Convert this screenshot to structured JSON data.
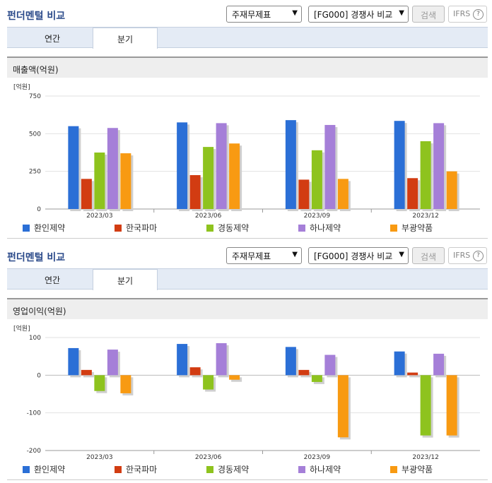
{
  "panels": [
    {
      "title": "펀더멘털 비교",
      "select1": "주재무제표",
      "select2": "[FG000] 경쟁사 비교",
      "search_label": "검색",
      "ifrs_label": "IFRS",
      "help_symbol": "?",
      "tab_annual": "연간",
      "tab_quarter": "분기",
      "section_title": "매출액(억원)"
    },
    {
      "title": "펀더멘털 비교",
      "select1": "주재무제표",
      "select2": "[FG000] 경쟁사 비교",
      "search_label": "검색",
      "ifrs_label": "IFRS",
      "help_symbol": "?",
      "tab_annual": "연간",
      "tab_quarter": "분기",
      "section_title": "영업이익(억원)"
    }
  ],
  "chart_data": [
    {
      "type": "bar",
      "unit_label": "[억원]",
      "categories": [
        "2023/03",
        "2023/06",
        "2023/09",
        "2023/12"
      ],
      "ylim": [
        0,
        750
      ],
      "yticks": [
        0,
        250,
        500,
        750
      ],
      "grid": true,
      "legend_position": "bottom",
      "series": [
        {
          "name": "환인제약",
          "color": "#2b6fd6",
          "values": [
            550,
            575,
            590,
            585
          ]
        },
        {
          "name": "한국파마",
          "color": "#d23c12",
          "values": [
            200,
            225,
            195,
            205
          ]
        },
        {
          "name": "경동제약",
          "color": "#8ec31e",
          "values": [
            375,
            412,
            390,
            450
          ]
        },
        {
          "name": "하나제약",
          "color": "#a57fd8",
          "values": [
            538,
            570,
            558,
            570
          ]
        },
        {
          "name": "부광약품",
          "color": "#f89a12",
          "values": [
            370,
            435,
            200,
            250
          ]
        }
      ]
    },
    {
      "type": "bar",
      "unit_label": "[억원]",
      "categories": [
        "2023/03",
        "2023/06",
        "2023/09",
        "2023/12"
      ],
      "ylim": [
        -200,
        100
      ],
      "yticks": [
        -200,
        -100,
        0,
        100
      ],
      "grid": true,
      "legend_position": "bottom",
      "series": [
        {
          "name": "환인제약",
          "color": "#2b6fd6",
          "values": [
            72,
            83,
            75,
            63
          ]
        },
        {
          "name": "한국파마",
          "color": "#d23c12",
          "values": [
            14,
            21,
            14,
            7
          ]
        },
        {
          "name": "경동제약",
          "color": "#8ec31e",
          "values": [
            -42,
            -38,
            -18,
            -160
          ]
        },
        {
          "name": "하나제약",
          "color": "#a57fd8",
          "values": [
            68,
            85,
            54,
            57
          ]
        },
        {
          "name": "부광약품",
          "color": "#f89a12",
          "values": [
            -48,
            -12,
            -165,
            -160
          ]
        }
      ]
    }
  ]
}
